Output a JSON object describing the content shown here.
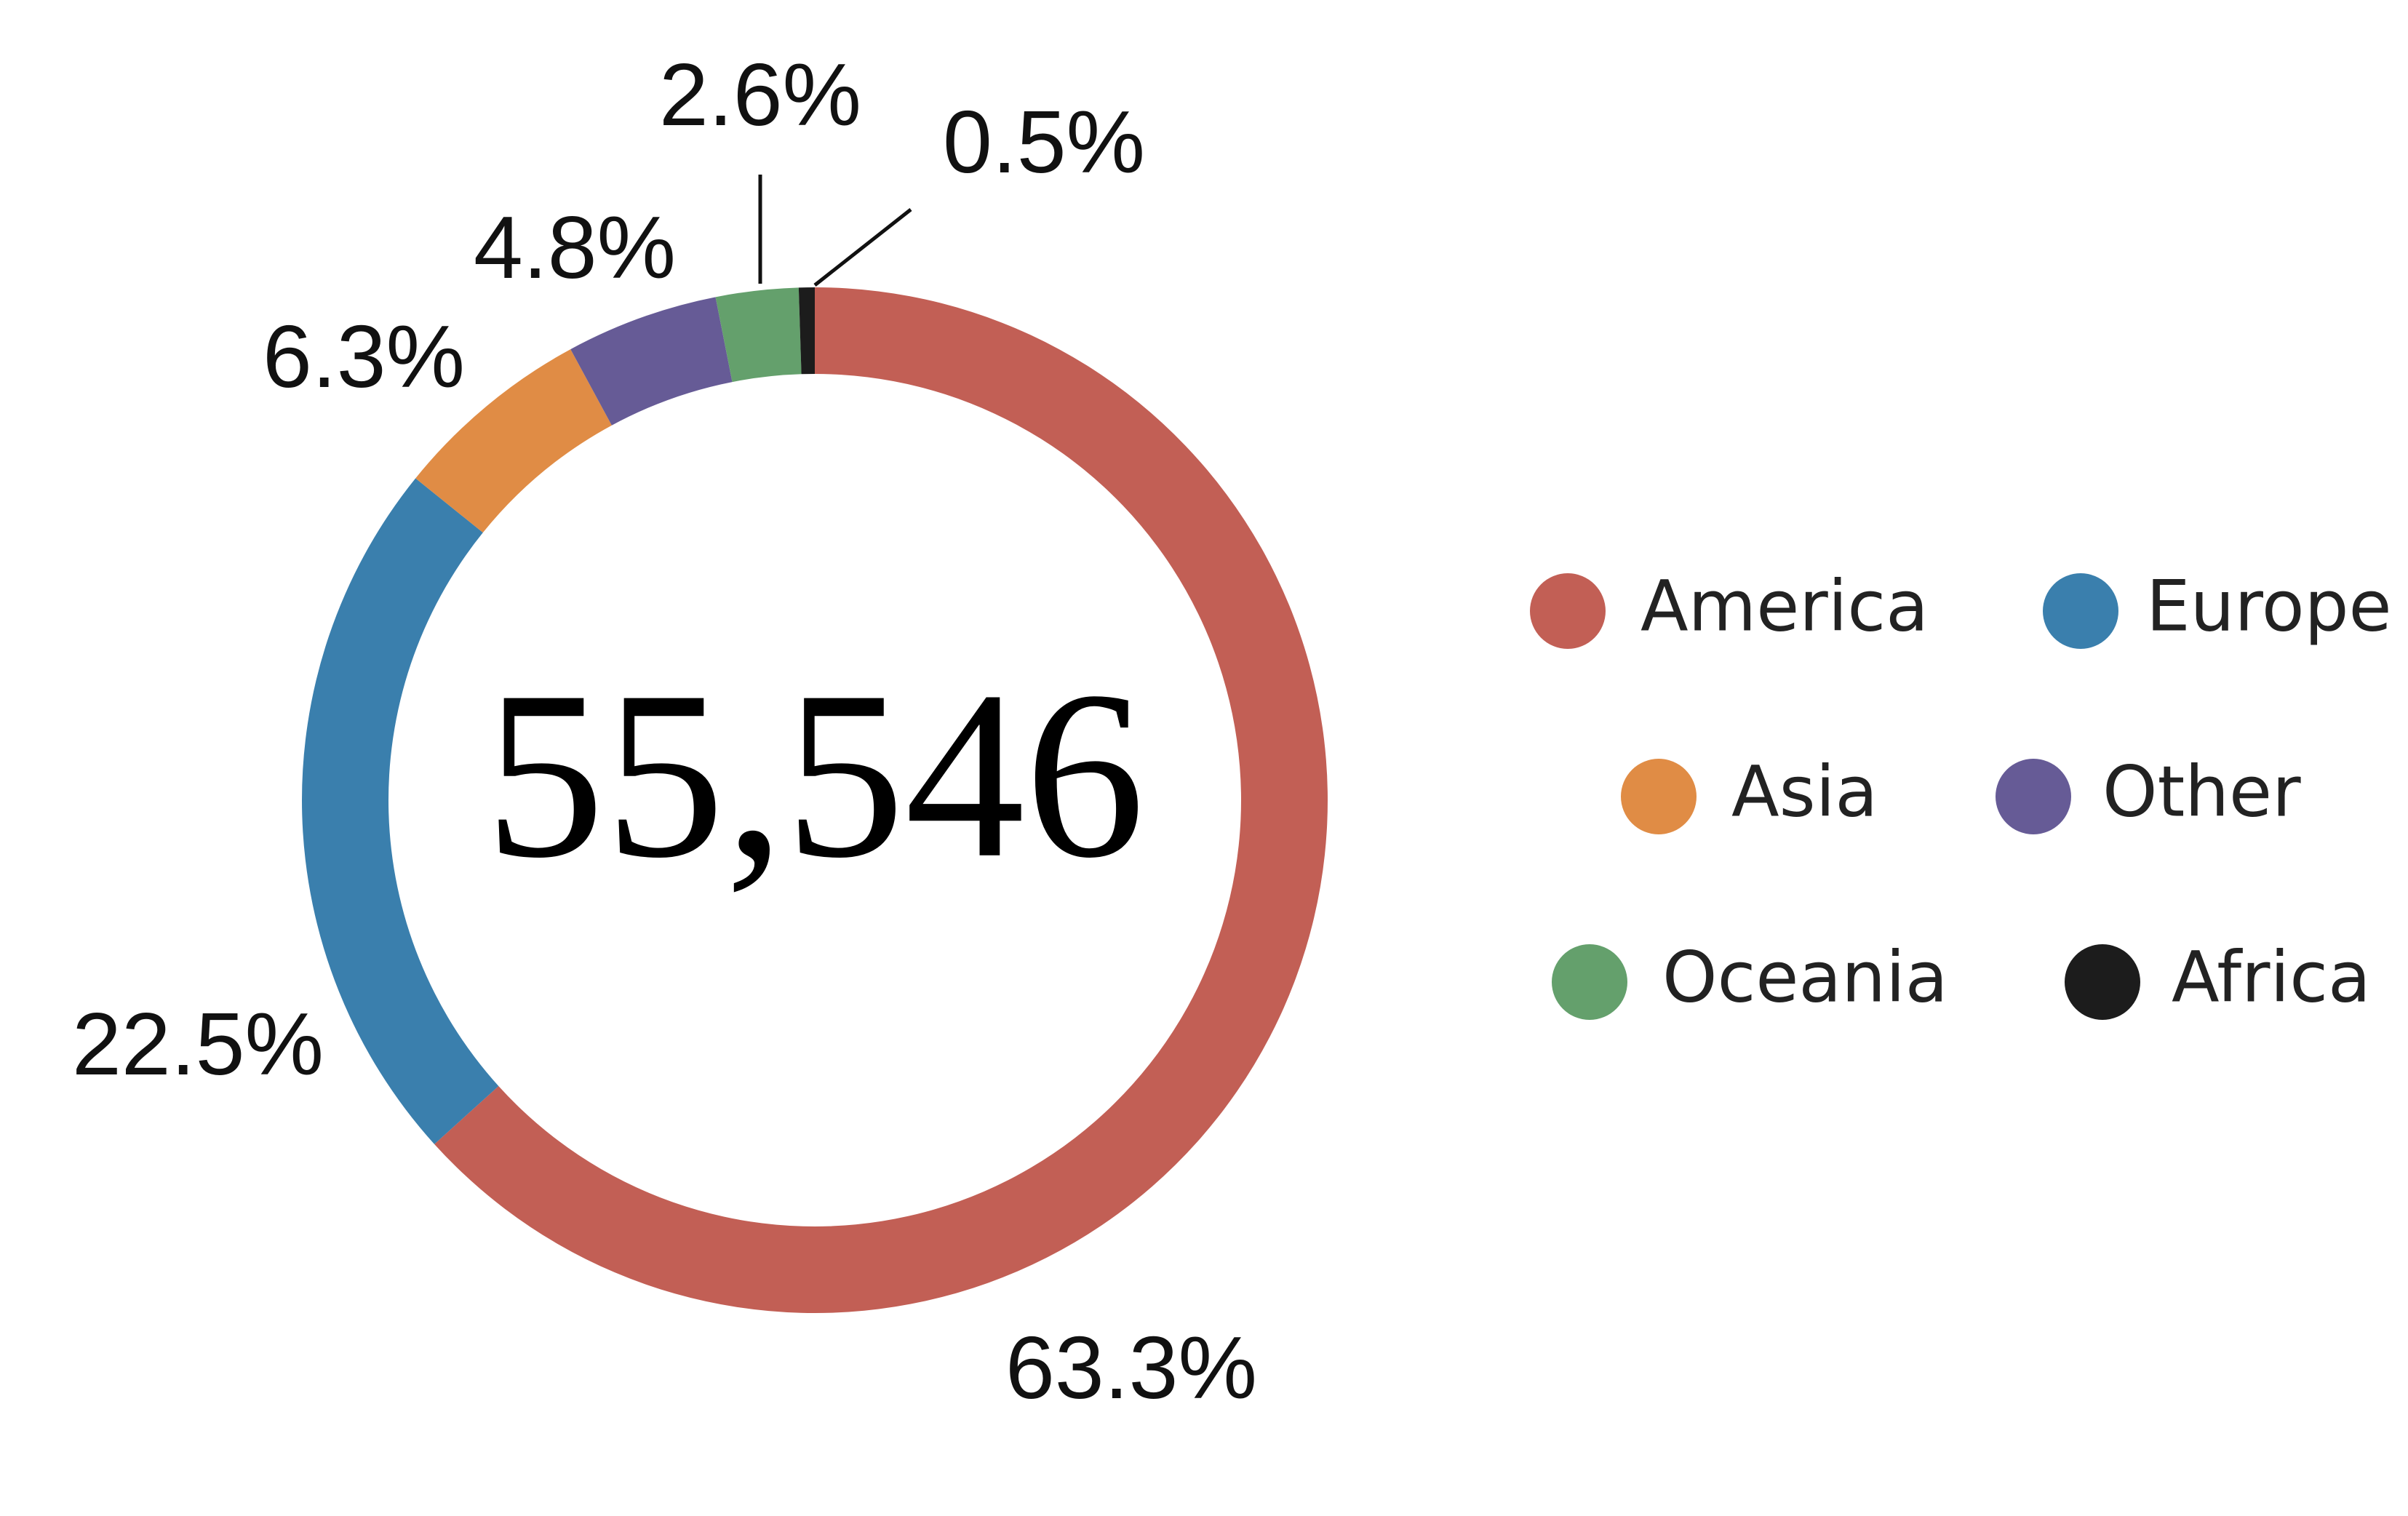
{
  "chart_data": {
    "type": "pie",
    "variant": "donut",
    "center_total": "55,546",
    "categories": [
      "America",
      "Europe",
      "Asia",
      "Other",
      "Oceania",
      "Africa"
    ],
    "values": [
      63.3,
      22.5,
      6.3,
      4.8,
      2.6,
      0.5
    ],
    "value_labels": [
      "63.3%",
      "22.5%",
      "6.3%",
      "4.8%",
      "2.6%",
      "0.5%"
    ],
    "colors": [
      "#c25f55",
      "#3a7fad",
      "#e08c45",
      "#665b96",
      "#64a06c",
      "#1c1c1c"
    ],
    "legend": {
      "placement": "right",
      "columns": 2,
      "entries": [
        "America",
        "Europe",
        "Asia",
        "Other",
        "Oceania",
        "Africa"
      ]
    },
    "start_angle": "12 o'clock",
    "direction": "clockwise"
  }
}
